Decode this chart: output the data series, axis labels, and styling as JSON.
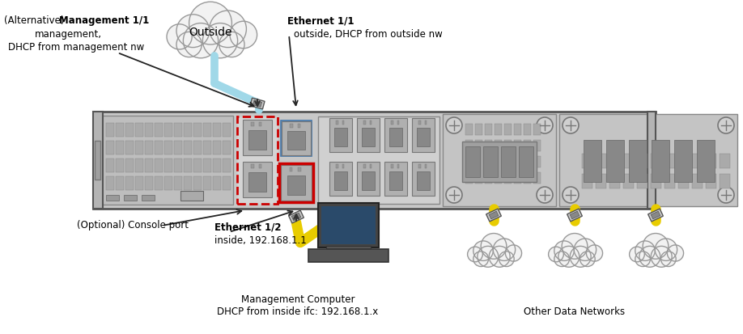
{
  "bg_color": "#ffffff",
  "figsize": [
    9.18,
    4.14
  ],
  "dpi": 100,
  "labels": {
    "outside": "Outside",
    "alt_mgmt_pre": "(Alternative) ",
    "alt_mgmt_bold": "Management 1/1",
    "alt_mgmt_line2": "management,",
    "alt_mgmt_line3": "DHCP from management nw",
    "eth11_bold": "Ethernet 1/1",
    "eth11_normal": "outside, DHCP from outside nw",
    "eth12_bold": "Ethernet 1/2",
    "eth12_normal": "inside, 192.168.1.1",
    "console": "(Optional) Console port",
    "mgmt_computer_line1": "Management Computer",
    "mgmt_computer_line2": "DHCP from inside ifc: 192.168.1.x",
    "other_data": "Other Data Networks"
  },
  "colors": {
    "chassis_face": "#c8c8c8",
    "chassis_edge": "#555555",
    "panel_face": "#b8b8b8",
    "panel_edge": "#777777",
    "port_face": "#c0c0c0",
    "port_inner": "#a0a0a0",
    "cyan_cable": "#a0d8e8",
    "yellow_cable": "#e8cc00",
    "red_dashed": "#cc0000",
    "blue_highlight": "#88aadd",
    "cloud_face": "#f2f2f2",
    "cloud_edge": "#999999",
    "arrow_color": "#222222",
    "text_color": "#000000",
    "dark_module": "#909090",
    "screw_face": "#d0d0d0"
  }
}
